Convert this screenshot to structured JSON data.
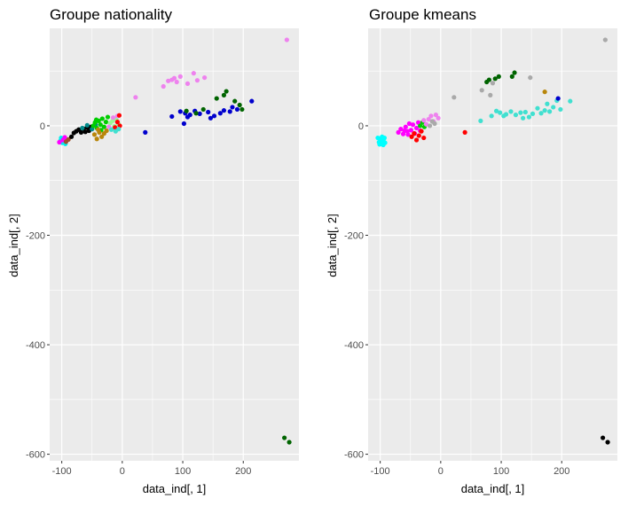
{
  "chart_data": [
    {
      "type": "scatter",
      "title": "Groupe nationality",
      "xlabel": "data_ind[, 1]",
      "ylabel": "data_ind[, 2]",
      "xticks": [
        -100,
        0,
        100,
        200
      ],
      "yticks": [
        0,
        -200,
        -400,
        -600
      ],
      "xlim": [
        -120,
        292
      ],
      "ylim": [
        -612,
        178
      ],
      "grid": true,
      "legend": "none",
      "points": [
        {
          "x": -102,
          "y": -27,
          "color": "#00eeee"
        },
        {
          "x": -99,
          "y": -31,
          "color": "#00eeee"
        },
        {
          "x": -96,
          "y": -24,
          "color": "#00eeee"
        },
        {
          "x": -94,
          "y": -33,
          "color": "#00eeee"
        },
        {
          "x": -101,
          "y": -22,
          "color": "#00eeee"
        },
        {
          "x": -104,
          "y": -30,
          "color": "#ff00ff"
        },
        {
          "x": -98,
          "y": -26,
          "color": "#ff00ff"
        },
        {
          "x": -92,
          "y": -27,
          "color": "#ff00ff"
        },
        {
          "x": -95,
          "y": -21,
          "color": "#ff00ff"
        },
        {
          "x": -89,
          "y": -25,
          "color": "#a0522d"
        },
        {
          "x": -93,
          "y": -29,
          "color": "#a0522d"
        },
        {
          "x": -84,
          "y": -20,
          "color": "#000000"
        },
        {
          "x": -80,
          "y": -13,
          "color": "#000000"
        },
        {
          "x": -76,
          "y": -10,
          "color": "#000000"
        },
        {
          "x": -72,
          "y": -7,
          "color": "#000000"
        },
        {
          "x": -68,
          "y": -12,
          "color": "#000000"
        },
        {
          "x": -64,
          "y": -5,
          "color": "#000000"
        },
        {
          "x": -61,
          "y": -11,
          "color": "#000000"
        },
        {
          "x": -58,
          "y": -3,
          "color": "#000000"
        },
        {
          "x": -55,
          "y": -9,
          "color": "#000000"
        },
        {
          "x": -52,
          "y": -2,
          "color": "#000000"
        },
        {
          "x": -66,
          "y": -4,
          "color": "#008b8b"
        },
        {
          "x": -58,
          "y": 1,
          "color": "#008b8b"
        },
        {
          "x": -50,
          "y": -6,
          "color": "#008b8b"
        },
        {
          "x": -44,
          "y": 2,
          "color": "#008b8b"
        },
        {
          "x": -48,
          "y": 0,
          "color": "#00cd00"
        },
        {
          "x": -45,
          "y": 6,
          "color": "#00cd00"
        },
        {
          "x": -42,
          "y": -4,
          "color": "#00cd00"
        },
        {
          "x": -39,
          "y": 9,
          "color": "#00cd00"
        },
        {
          "x": -36,
          "y": 2,
          "color": "#00cd00"
        },
        {
          "x": -33,
          "y": 13,
          "color": "#00cd00"
        },
        {
          "x": -30,
          "y": -2,
          "color": "#00cd00"
        },
        {
          "x": -27,
          "y": 7,
          "color": "#00cd00"
        },
        {
          "x": -24,
          "y": 16,
          "color": "#00cd00"
        },
        {
          "x": -43,
          "y": 11,
          "color": "#00cd00"
        },
        {
          "x": -35,
          "y": -8,
          "color": "#00cd00"
        },
        {
          "x": -46,
          "y": -16,
          "color": "#b8860b"
        },
        {
          "x": -42,
          "y": -24,
          "color": "#b8860b"
        },
        {
          "x": -38,
          "y": -12,
          "color": "#b8860b"
        },
        {
          "x": -34,
          "y": -20,
          "color": "#b8860b"
        },
        {
          "x": -30,
          "y": -14,
          "color": "#b8860b"
        },
        {
          "x": -26,
          "y": -9,
          "color": "#b8860b"
        },
        {
          "x": -40,
          "y": -7,
          "color": "#b8860b"
        },
        {
          "x": -20,
          "y": 5,
          "color": "#98fb98"
        },
        {
          "x": -16,
          "y": 9,
          "color": "#98fb98"
        },
        {
          "x": -13,
          "y": -1,
          "color": "#98fb98"
        },
        {
          "x": -10,
          "y": 12,
          "color": "#98fb98"
        },
        {
          "x": -6,
          "y": 3,
          "color": "#98fb98"
        },
        {
          "x": -22,
          "y": -2,
          "color": "#ee82ee"
        },
        {
          "x": -15,
          "y": 15,
          "color": "#ee82ee"
        },
        {
          "x": -8,
          "y": 18,
          "color": "#ee82ee"
        },
        {
          "x": -12,
          "y": -3,
          "color": "#ff0000"
        },
        {
          "x": -8,
          "y": 7,
          "color": "#ff0000"
        },
        {
          "x": -5,
          "y": 19,
          "color": "#ff0000"
        },
        {
          "x": -4,
          "y": 0,
          "color": "#ff0000"
        },
        {
          "x": -18,
          "y": -7,
          "color": "#40e0d0"
        },
        {
          "x": -11,
          "y": -10,
          "color": "#40e0d0"
        },
        {
          "x": -6,
          "y": -6,
          "color": "#40e0d0"
        },
        {
          "x": 22,
          "y": 52,
          "color": "#ee82ee"
        },
        {
          "x": 68,
          "y": 72,
          "color": "#ee82ee"
        },
        {
          "x": 76,
          "y": 82,
          "color": "#ee82ee"
        },
        {
          "x": 82,
          "y": 84,
          "color": "#ee82ee"
        },
        {
          "x": 86,
          "y": 87,
          "color": "#ee82ee"
        },
        {
          "x": 90,
          "y": 80,
          "color": "#ee82ee"
        },
        {
          "x": 96,
          "y": 90,
          "color": "#ee82ee"
        },
        {
          "x": 108,
          "y": 77,
          "color": "#ee82ee"
        },
        {
          "x": 118,
          "y": 96,
          "color": "#ee82ee"
        },
        {
          "x": 136,
          "y": 88,
          "color": "#ee82ee"
        },
        {
          "x": 124,
          "y": 83,
          "color": "#ee82ee"
        },
        {
          "x": 272,
          "y": 157,
          "color": "#ee82ee"
        },
        {
          "x": 38,
          "y": -12,
          "color": "#0000cd"
        },
        {
          "x": 82,
          "y": 17,
          "color": "#0000cd"
        },
        {
          "x": 96,
          "y": 26,
          "color": "#0000cd"
        },
        {
          "x": 104,
          "y": 23,
          "color": "#0000cd"
        },
        {
          "x": 108,
          "y": 16,
          "color": "#0000cd"
        },
        {
          "x": 112,
          "y": 20,
          "color": "#0000cd"
        },
        {
          "x": 120,
          "y": 27,
          "color": "#0000cd"
        },
        {
          "x": 128,
          "y": 22,
          "color": "#0000cd"
        },
        {
          "x": 142,
          "y": 25,
          "color": "#0000cd"
        },
        {
          "x": 152,
          "y": 18,
          "color": "#0000cd"
        },
        {
          "x": 162,
          "y": 23,
          "color": "#0000cd"
        },
        {
          "x": 168,
          "y": 28,
          "color": "#0000cd"
        },
        {
          "x": 182,
          "y": 34,
          "color": "#0000cd"
        },
        {
          "x": 190,
          "y": 30,
          "color": "#0000cd"
        },
        {
          "x": 214,
          "y": 45,
          "color": "#0000cd"
        },
        {
          "x": 102,
          "y": 4,
          "color": "#0000cd"
        },
        {
          "x": 146,
          "y": 14,
          "color": "#0000cd"
        },
        {
          "x": 178,
          "y": 26,
          "color": "#0000cd"
        },
        {
          "x": 106,
          "y": 27,
          "color": "#006400"
        },
        {
          "x": 122,
          "y": 23,
          "color": "#006400"
        },
        {
          "x": 134,
          "y": 30,
          "color": "#006400"
        },
        {
          "x": 156,
          "y": 50,
          "color": "#006400"
        },
        {
          "x": 168,
          "y": 56,
          "color": "#006400"
        },
        {
          "x": 172,
          "y": 63,
          "color": "#006400"
        },
        {
          "x": 186,
          "y": 45,
          "color": "#006400"
        },
        {
          "x": 194,
          "y": 38,
          "color": "#006400"
        },
        {
          "x": 198,
          "y": 30,
          "color": "#006400"
        },
        {
          "x": 268,
          "y": -570,
          "color": "#006400"
        },
        {
          "x": 276,
          "y": -578,
          "color": "#006400"
        }
      ]
    },
    {
      "type": "scatter",
      "title": "Groupe kmeans",
      "xlabel": "data_ind[, 1]",
      "ylabel": "data_ind[, 2]",
      "xticks": [
        -100,
        0,
        100,
        200
      ],
      "yticks": [
        0,
        -200,
        -400,
        -600
      ],
      "xlim": [
        -120,
        292
      ],
      "ylim": [
        -612,
        178
      ],
      "grid": true,
      "legend": "none",
      "points": [
        {
          "x": -104,
          "y": -22,
          "color": "#00ffff"
        },
        {
          "x": -102,
          "y": -30,
          "color": "#00ffff"
        },
        {
          "x": -100,
          "y": -25,
          "color": "#00ffff"
        },
        {
          "x": -98,
          "y": -33,
          "color": "#00ffff"
        },
        {
          "x": -96,
          "y": -28,
          "color": "#00ffff"
        },
        {
          "x": -94,
          "y": -24,
          "color": "#00ffff"
        },
        {
          "x": -92,
          "y": -31,
          "color": "#00ffff"
        },
        {
          "x": -97,
          "y": -20,
          "color": "#00ffff"
        },
        {
          "x": -101,
          "y": -34,
          "color": "#00ffff"
        },
        {
          "x": -95,
          "y": -35,
          "color": "#00ffff"
        },
        {
          "x": -99,
          "y": -27,
          "color": "#00ffff"
        },
        {
          "x": -93,
          "y": -22,
          "color": "#00ffff"
        },
        {
          "x": -70,
          "y": -12,
          "color": "#ff00ff"
        },
        {
          "x": -66,
          "y": -6,
          "color": "#ff00ff"
        },
        {
          "x": -62,
          "y": -15,
          "color": "#ff00ff"
        },
        {
          "x": -58,
          "y": -2,
          "color": "#ff00ff"
        },
        {
          "x": -55,
          "y": -10,
          "color": "#ff00ff"
        },
        {
          "x": -52,
          "y": 4,
          "color": "#ff00ff"
        },
        {
          "x": -49,
          "y": -8,
          "color": "#ff00ff"
        },
        {
          "x": -46,
          "y": 2,
          "color": "#ff00ff"
        },
        {
          "x": -43,
          "y": -14,
          "color": "#ff00ff"
        },
        {
          "x": -40,
          "y": -4,
          "color": "#ff00ff"
        },
        {
          "x": -37,
          "y": 6,
          "color": "#ff00ff"
        },
        {
          "x": -34,
          "y": -9,
          "color": "#ff00ff"
        },
        {
          "x": -60,
          "y": -9,
          "color": "#ff00ff"
        },
        {
          "x": -54,
          "y": -16,
          "color": "#ff00ff"
        },
        {
          "x": -48,
          "y": -20,
          "color": "#ff0000"
        },
        {
          "x": -44,
          "y": -14,
          "color": "#ff0000"
        },
        {
          "x": -40,
          "y": -26,
          "color": "#ff0000"
        },
        {
          "x": -36,
          "y": -18,
          "color": "#ff0000"
        },
        {
          "x": -32,
          "y": -10,
          "color": "#ff0000"
        },
        {
          "x": -28,
          "y": -22,
          "color": "#ff0000"
        },
        {
          "x": 40,
          "y": -12,
          "color": "#ff0000"
        },
        {
          "x": -34,
          "y": 0,
          "color": "#00cd00"
        },
        {
          "x": -30,
          "y": 6,
          "color": "#00cd00"
        },
        {
          "x": -27,
          "y": -2,
          "color": "#00cd00"
        },
        {
          "x": -28,
          "y": 10,
          "color": "#ee82ee"
        },
        {
          "x": -24,
          "y": 3,
          "color": "#ee82ee"
        },
        {
          "x": -20,
          "y": 12,
          "color": "#ee82ee"
        },
        {
          "x": -16,
          "y": 18,
          "color": "#ee82ee"
        },
        {
          "x": -12,
          "y": 8,
          "color": "#ee82ee"
        },
        {
          "x": -8,
          "y": 20,
          "color": "#ee82ee"
        },
        {
          "x": -4,
          "y": 14,
          "color": "#ee82ee"
        },
        {
          "x": -18,
          "y": 0,
          "color": "#a9a9a9"
        },
        {
          "x": -14,
          "y": 8,
          "color": "#a9a9a9"
        },
        {
          "x": -10,
          "y": 4,
          "color": "#a9a9a9"
        },
        {
          "x": 22,
          "y": 52,
          "color": "#a9a9a9"
        },
        {
          "x": 68,
          "y": 65,
          "color": "#a9a9a9"
        },
        {
          "x": 82,
          "y": 56,
          "color": "#a9a9a9"
        },
        {
          "x": 86,
          "y": 78,
          "color": "#a9a9a9"
        },
        {
          "x": 148,
          "y": 88,
          "color": "#a9a9a9"
        },
        {
          "x": 272,
          "y": 157,
          "color": "#a9a9a9"
        },
        {
          "x": 76,
          "y": 80,
          "color": "#006400"
        },
        {
          "x": 80,
          "y": 84,
          "color": "#006400"
        },
        {
          "x": 90,
          "y": 86,
          "color": "#006400"
        },
        {
          "x": 96,
          "y": 90,
          "color": "#006400"
        },
        {
          "x": 118,
          "y": 90,
          "color": "#006400"
        },
        {
          "x": 122,
          "y": 97,
          "color": "#006400"
        },
        {
          "x": 66,
          "y": 9,
          "color": "#40e0d0"
        },
        {
          "x": 84,
          "y": 18,
          "color": "#40e0d0"
        },
        {
          "x": 92,
          "y": 27,
          "color": "#40e0d0"
        },
        {
          "x": 98,
          "y": 24,
          "color": "#40e0d0"
        },
        {
          "x": 104,
          "y": 18,
          "color": "#40e0d0"
        },
        {
          "x": 108,
          "y": 21,
          "color": "#40e0d0"
        },
        {
          "x": 116,
          "y": 26,
          "color": "#40e0d0"
        },
        {
          "x": 124,
          "y": 20,
          "color": "#40e0d0"
        },
        {
          "x": 132,
          "y": 24,
          "color": "#40e0d0"
        },
        {
          "x": 140,
          "y": 25,
          "color": "#40e0d0"
        },
        {
          "x": 146,
          "y": 16,
          "color": "#40e0d0"
        },
        {
          "x": 152,
          "y": 22,
          "color": "#40e0d0"
        },
        {
          "x": 160,
          "y": 32,
          "color": "#40e0d0"
        },
        {
          "x": 166,
          "y": 23,
          "color": "#40e0d0"
        },
        {
          "x": 172,
          "y": 28,
          "color": "#40e0d0"
        },
        {
          "x": 180,
          "y": 26,
          "color": "#40e0d0"
        },
        {
          "x": 186,
          "y": 34,
          "color": "#40e0d0"
        },
        {
          "x": 192,
          "y": 46,
          "color": "#40e0d0"
        },
        {
          "x": 198,
          "y": 30,
          "color": "#40e0d0"
        },
        {
          "x": 214,
          "y": 45,
          "color": "#40e0d0"
        },
        {
          "x": 136,
          "y": 14,
          "color": "#40e0d0"
        },
        {
          "x": 176,
          "y": 40,
          "color": "#40e0d0"
        },
        {
          "x": 172,
          "y": 62,
          "color": "#b8860b"
        },
        {
          "x": 194,
          "y": 50,
          "color": "#0000cd"
        },
        {
          "x": 268,
          "y": -570,
          "color": "#000000"
        },
        {
          "x": 276,
          "y": -578,
          "color": "#000000"
        }
      ]
    }
  ]
}
